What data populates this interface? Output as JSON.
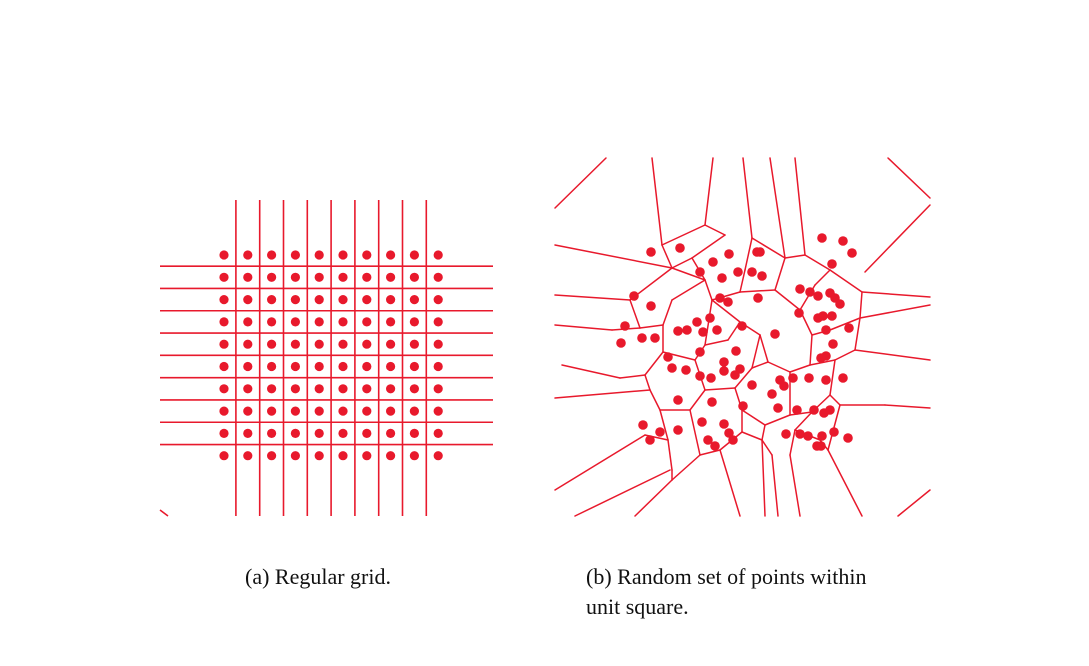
{
  "figure": {
    "accent_color": "#e8192c",
    "panel_a": {
      "caption": "(a) Regular grid.",
      "grid_rows": 10,
      "grid_cols": 10
    },
    "panel_b": {
      "caption_line1": "(b) Random set of points within",
      "caption_line2": "unit square."
    }
  }
}
